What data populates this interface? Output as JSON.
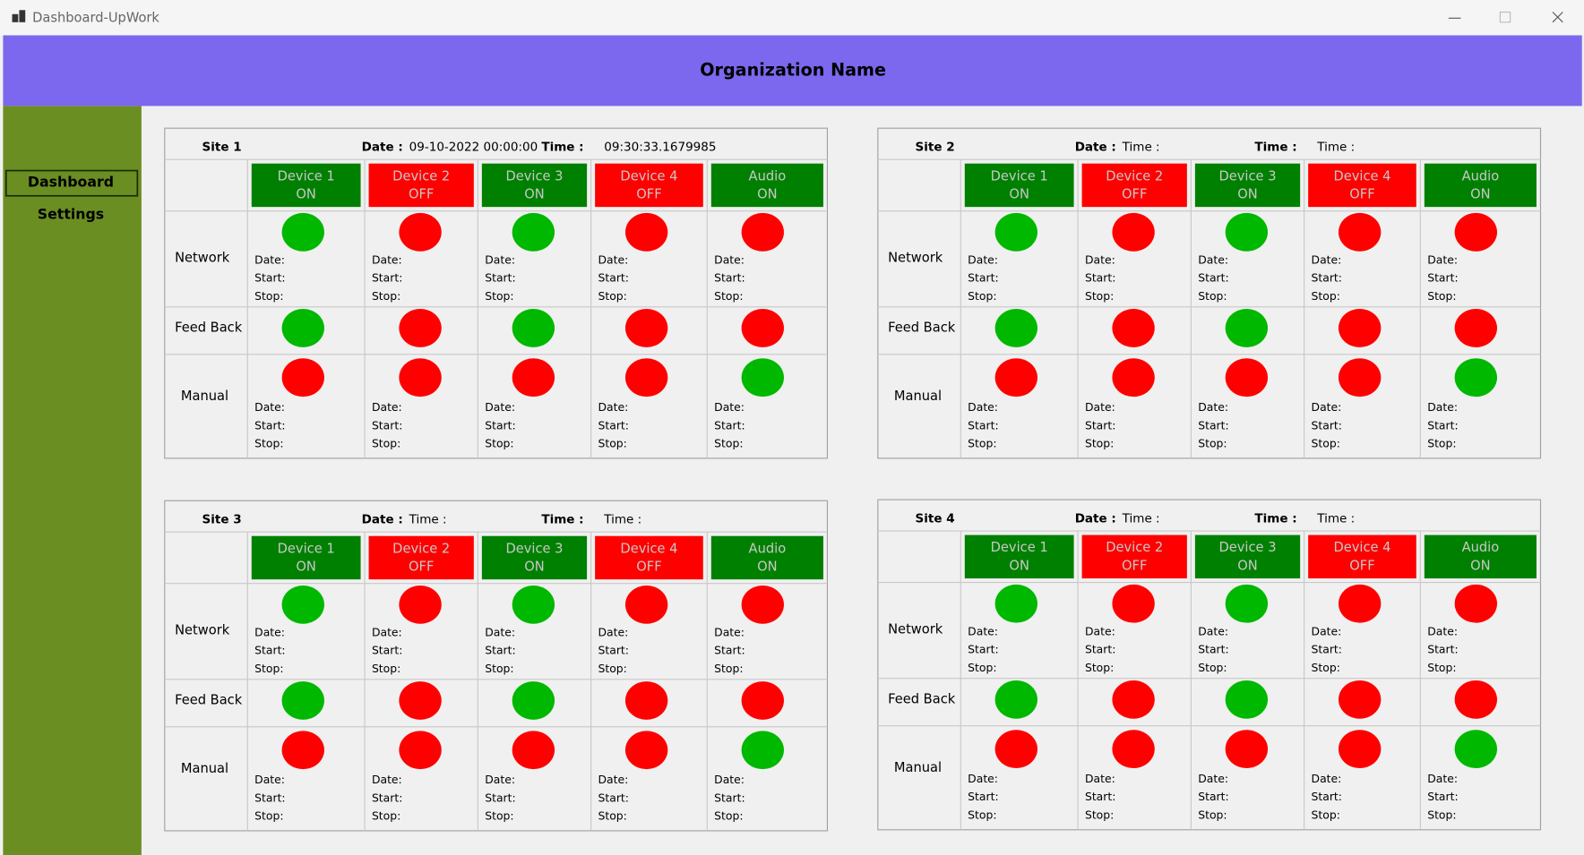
{
  "window": {
    "title": "Dashboard-UpWork"
  },
  "header": {
    "title": "Organization Name"
  },
  "nav": [
    {
      "label": "Dashboard",
      "active": true
    },
    {
      "label": "Settings",
      "active": false
    }
  ],
  "sites": [
    {
      "name": "Site 1",
      "date_label": "Date :",
      "date": "09-10-2022 00:00:00",
      "time_label": "Time :",
      "time": "09:30:33.1679985",
      "devices": [
        {
          "name": "Device 1",
          "status": "ON",
          "color": "#008000"
        },
        {
          "name": "Device 2",
          "status": "OFF",
          "color": "#ff0000"
        },
        {
          "name": "Device 3",
          "status": "ON",
          "color": "#008000"
        },
        {
          "name": "Device 4",
          "status": "OFF",
          "color": "#ff0000"
        },
        {
          "name": "Audio",
          "status": "ON",
          "color": "#008000"
        }
      ],
      "rows": [
        {
          "label": "Network",
          "colors": [
            "#00b800",
            "#ff0000",
            "#00b800",
            "#ff0000",
            "#ff0000"
          ],
          "fields": [
            "Date:",
            "Start:",
            "Stop:"
          ]
        },
        {
          "label": "Feed Back",
          "colors": [
            "#00b800",
            "#ff0000",
            "#00b800",
            "#ff0000",
            "#ff0000"
          ],
          "fields": []
        },
        {
          "label": "Manual",
          "colors": [
            "#ff0000",
            "#ff0000",
            "#ff0000",
            "#ff0000",
            "#00b800"
          ],
          "fields": [
            "Date:",
            "Start:",
            "Stop:"
          ]
        }
      ]
    },
    {
      "name": "Site 2",
      "date_label": "Date :",
      "date": "Time :",
      "time_label": "Time :",
      "time": "Time :",
      "devices": [
        {
          "name": "Device 1",
          "status": "ON",
          "color": "#008000"
        },
        {
          "name": "Device 2",
          "status": "OFF",
          "color": "#ff0000"
        },
        {
          "name": "Device 3",
          "status": "ON",
          "color": "#008000"
        },
        {
          "name": "Device 4",
          "status": "OFF",
          "color": "#ff0000"
        },
        {
          "name": "Audio",
          "status": "ON",
          "color": "#008000"
        }
      ],
      "rows": [
        {
          "label": "Network",
          "colors": [
            "#00b800",
            "#ff0000",
            "#00b800",
            "#ff0000",
            "#ff0000"
          ],
          "fields": [
            "Date:",
            "Start:",
            "Stop:"
          ]
        },
        {
          "label": "Feed Back",
          "colors": [
            "#00b800",
            "#ff0000",
            "#00b800",
            "#ff0000",
            "#ff0000"
          ],
          "fields": []
        },
        {
          "label": "Manual",
          "colors": [
            "#ff0000",
            "#ff0000",
            "#ff0000",
            "#ff0000",
            "#00b800"
          ],
          "fields": [
            "Date:",
            "Start:",
            "Stop:"
          ]
        }
      ]
    },
    {
      "name": "Site 3",
      "date_label": "Date :",
      "date": "Time :",
      "time_label": "Time :",
      "time": "Time :",
      "devices": [
        {
          "name": "Device 1",
          "status": "ON",
          "color": "#008000"
        },
        {
          "name": "Device 2",
          "status": "OFF",
          "color": "#ff0000"
        },
        {
          "name": "Device 3",
          "status": "ON",
          "color": "#008000"
        },
        {
          "name": "Device 4",
          "status": "OFF",
          "color": "#ff0000"
        },
        {
          "name": "Audio",
          "status": "ON",
          "color": "#008000"
        }
      ],
      "rows": [
        {
          "label": "Network",
          "colors": [
            "#00b800",
            "#ff0000",
            "#00b800",
            "#ff0000",
            "#ff0000"
          ],
          "fields": [
            "Date:",
            "Start:",
            "Stop:"
          ]
        },
        {
          "label": "Feed Back",
          "colors": [
            "#00b800",
            "#ff0000",
            "#00b800",
            "#ff0000",
            "#ff0000"
          ],
          "fields": []
        },
        {
          "label": "Manual",
          "colors": [
            "#ff0000",
            "#ff0000",
            "#ff0000",
            "#ff0000",
            "#00b800"
          ],
          "fields": [
            "Date:",
            "Start:",
            "Stop:"
          ]
        }
      ]
    },
    {
      "name": "Site 4",
      "date_label": "Date :",
      "date": "Time :",
      "time_label": "Time :",
      "time": "Time :",
      "devices": [
        {
          "name": "Device 1",
          "status": "ON",
          "color": "#008000"
        },
        {
          "name": "Device 2",
          "status": "OFF",
          "color": "#ff0000"
        },
        {
          "name": "Device 3",
          "status": "ON",
          "color": "#008000"
        },
        {
          "name": "Device 4",
          "status": "OFF",
          "color": "#ff0000"
        },
        {
          "name": "Audio",
          "status": "ON",
          "color": "#008000"
        }
      ],
      "rows": [
        {
          "label": "Network",
          "colors": [
            "#00b800",
            "#ff0000",
            "#00b800",
            "#ff0000",
            "#ff0000"
          ],
          "fields": [
            "Date:",
            "Start:",
            "Stop:"
          ]
        },
        {
          "label": "Feed Back",
          "colors": [
            "#00b800",
            "#ff0000",
            "#00b800",
            "#ff0000",
            "#ff0000"
          ],
          "fields": []
        },
        {
          "label": "Manual",
          "colors": [
            "#ff0000",
            "#ff0000",
            "#ff0000",
            "#ff0000",
            "#00b800"
          ],
          "fields": [
            "Date:",
            "Start:",
            "Stop:"
          ]
        }
      ]
    }
  ]
}
